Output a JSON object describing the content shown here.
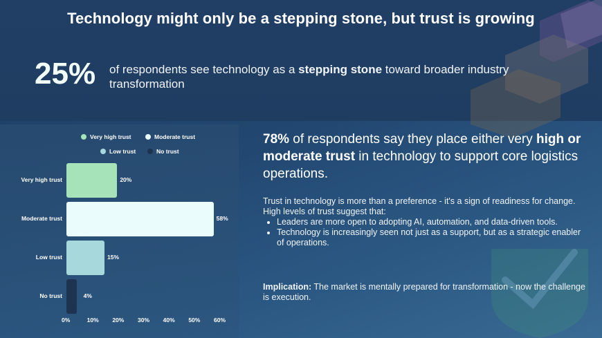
{
  "title": "Technology might only be a stepping stone, but trust is growing",
  "stat": {
    "value": "25%",
    "text_before": "of respondents see technology as a ",
    "text_bold": "stepping stone",
    "text_after": " toward broader industry transformation"
  },
  "headline": {
    "bold1": "78%",
    "text1": " of respondents say they place either very ",
    "bold2": "high or moderate trust",
    "text2": " in technology to support core logistics operations."
  },
  "body": {
    "intro": "Trust in technology is more than a preference - it's a sign of readiness for change. High levels of trust suggest that:",
    "bullets": [
      "Leaders are more open to adopting AI, automation, and data-driven tools.",
      "Technology is increasingly seen not just as a support, but as a strategic enabler of operations."
    ]
  },
  "implication": {
    "label": "Implication:",
    "text": " The market is mentally prepared for transformation - now the challenge is execution."
  },
  "chart_data": {
    "type": "bar",
    "orientation": "horizontal",
    "categories": [
      "Very high trust",
      "Moderate trust",
      "Low trust",
      "No trust"
    ],
    "values": [
      20,
      58,
      15,
      4
    ],
    "value_labels": [
      "20%",
      "58%",
      "15%",
      "4%"
    ],
    "colors": [
      "#a6e3b9",
      "#eafdfc",
      "#a6d8dc",
      "#1d3350"
    ],
    "ticks": [
      "0%",
      "10%",
      "20%",
      "30%",
      "40%",
      "50%",
      "60%"
    ],
    "xlim": [
      0,
      60
    ],
    "legend": [
      "Very high trust",
      "Moderate trust",
      "Low trust",
      "No trust"
    ],
    "legend_position": "top",
    "grid": false
  }
}
